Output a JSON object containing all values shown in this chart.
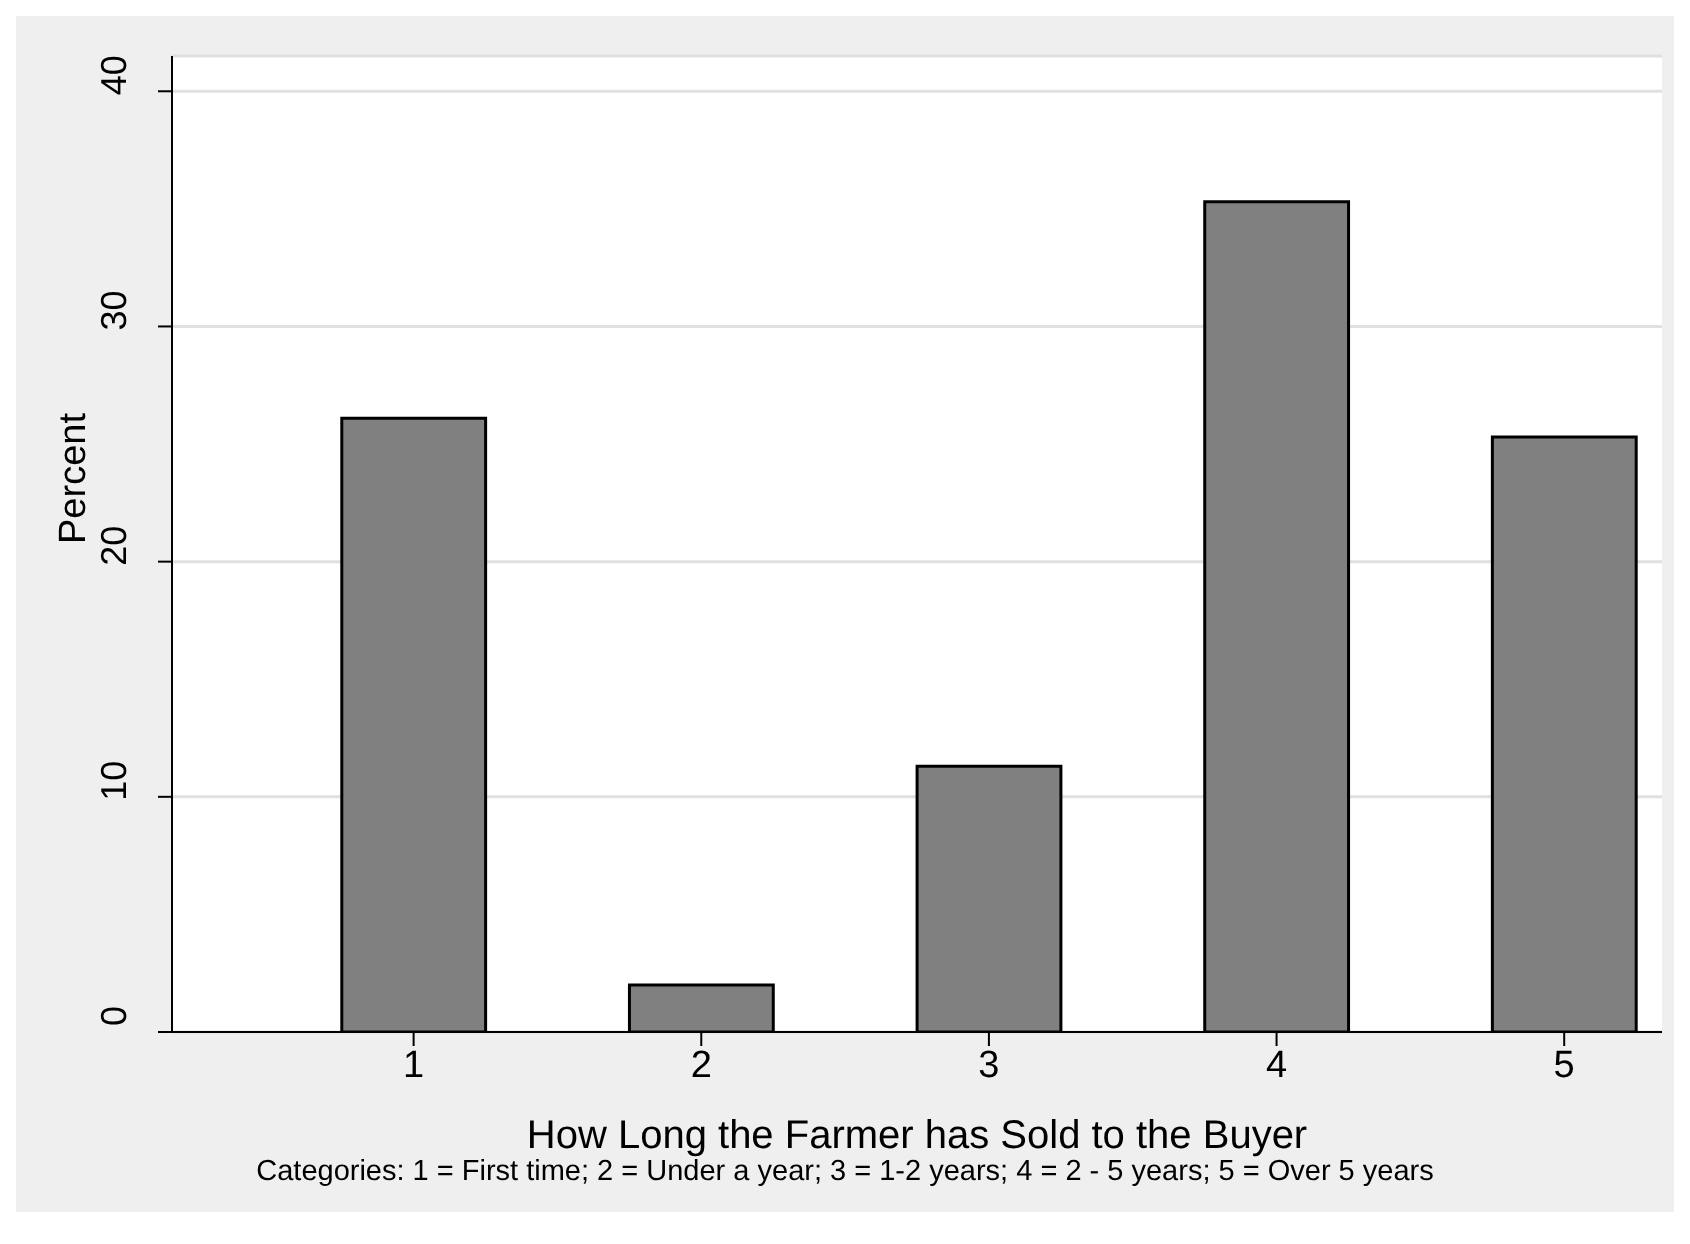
{
  "chart_data": {
    "type": "bar",
    "xlabel": "How Long the Farmer has Sold to the Buyer",
    "ylabel": "Percent",
    "annotations": [
      "Categories: 1 = First time; 2 = Under a year; 3 = 1-2 years; 4 = 2 - 5 years; 5 = Over 5 years"
    ],
    "x": [
      1,
      2,
      3,
      4,
      5
    ],
    "values": [
      26.1,
      2.0,
      11.3,
      35.3,
      25.3
    ],
    "color": "#808080",
    "xlim": [
      0.16,
      5.34
    ],
    "xticks": [
      1,
      2,
      3,
      4,
      5
    ],
    "ylim": [
      0,
      41.5
    ],
    "yticks": [
      0,
      10,
      20,
      30,
      40
    ],
    "grid": "y"
  }
}
